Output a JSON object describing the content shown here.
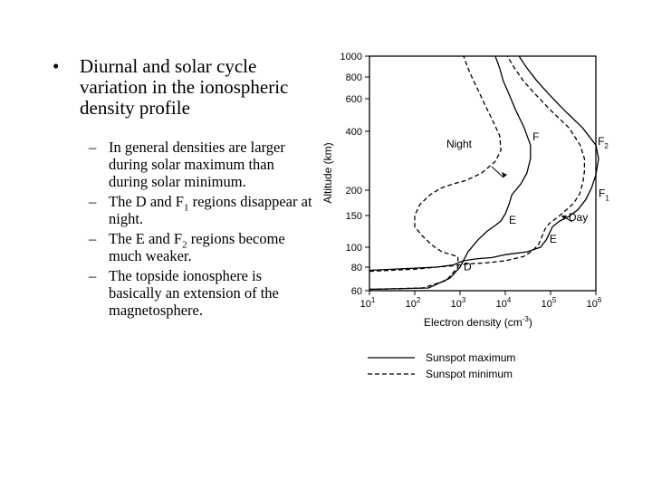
{
  "slide": {
    "bullet_dot": "•",
    "bullet_main": "Diurnal and solar cycle variation in the ionospheric density profile",
    "sub_dash": "–",
    "sub_bullets": [
      {
        "before": "In general densities are larger during solar maximum than during solar minimum.",
        "sub": "",
        "after": ""
      },
      {
        "before": "The D and F",
        "sub": "1",
        "after": " regions disappear at night."
      },
      {
        "before": "The E and F",
        "sub": "2",
        "after": " regions become much weaker."
      },
      {
        "before": "The topside ionosphere is basically an extension of the magnetosphere.",
        "sub": "",
        "after": ""
      }
    ]
  },
  "chart_data": {
    "type": "line",
    "ylabel": "Altitude (km)",
    "xlabel": "Electron density (cm",
    "xlabel_exp": "-3",
    "xlabel_close": ")",
    "x_ticks": [
      {
        "label": "10",
        "exp": "1",
        "value": 10
      },
      {
        "label": "10",
        "exp": "2",
        "value": 100
      },
      {
        "label": "10",
        "exp": "3",
        "value": 1000
      },
      {
        "label": "10",
        "exp": "4",
        "value": 10000
      },
      {
        "label": "10",
        "exp": "5",
        "value": 100000
      },
      {
        "label": "10",
        "exp": "6",
        "value": 1000000
      }
    ],
    "y_ticks": [
      {
        "label": "60",
        "value": 60
      },
      {
        "label": "80",
        "value": 80
      },
      {
        "label": "100",
        "value": 100
      },
      {
        "label": "150",
        "value": 150
      },
      {
        "label": "200",
        "value": 200
      },
      {
        "label": "400",
        "value": 400
      },
      {
        "label": "600",
        "value": 600
      },
      {
        "label": "800",
        "value": 800
      },
      {
        "label": "1000",
        "value": 1000
      }
    ],
    "legend": [
      {
        "label": "Sunspot maximum",
        "style": "solid"
      },
      {
        "label": "Sunspot minimum",
        "style": "dashed"
      }
    ],
    "annotations": [
      {
        "text": "Night",
        "x": 500,
        "y": 330
      },
      {
        "text": "F",
        "x": 40000,
        "y": 360
      },
      {
        "text": "F",
        "sub": "2",
        "x": 1100000,
        "y": 340
      },
      {
        "text": "F",
        "sub": "1",
        "x": 1150000,
        "y": 185
      },
      {
        "text": "Day",
        "x": 250000,
        "y": 140
      },
      {
        "text": "E",
        "x": 12000,
        "y": 135
      },
      {
        "text": "E",
        "x": 95000,
        "y": 106
      },
      {
        "text": "D",
        "x": 1200,
        "y": 77
      }
    ],
    "series": [
      {
        "line": "solid",
        "points": [
          [
            10,
            77
          ],
          [
            100,
            79
          ],
          [
            300,
            80
          ],
          [
            700,
            82
          ],
          [
            1200,
            86
          ],
          [
            2500,
            88
          ],
          [
            5000,
            89
          ],
          [
            10000,
            92
          ],
          [
            30000,
            95
          ],
          [
            60000,
            100
          ],
          [
            80000,
            110
          ],
          [
            95000,
            120
          ],
          [
            110000,
            130
          ],
          [
            160000,
            140
          ],
          [
            250000,
            148
          ],
          [
            400000,
            160
          ],
          [
            600000,
            180
          ],
          [
            800000,
            205
          ],
          [
            1000000,
            240
          ],
          [
            1150000,
            290
          ],
          [
            1000000,
            340
          ],
          [
            500000,
            420
          ],
          [
            200000,
            520
          ],
          [
            90000,
            640
          ],
          [
            50000,
            760
          ],
          [
            30000,
            880
          ],
          [
            20000,
            1000
          ]
        ]
      },
      {
        "line": "dashed",
        "points": [
          [
            10,
            76
          ],
          [
            100,
            78
          ],
          [
            300,
            80
          ],
          [
            600,
            81
          ],
          [
            1500,
            83
          ],
          [
            4000,
            84
          ],
          [
            10000,
            86
          ],
          [
            25000,
            90
          ],
          [
            40000,
            96
          ],
          [
            55000,
            104
          ],
          [
            65000,
            115
          ],
          [
            75000,
            126
          ],
          [
            95000,
            136
          ],
          [
            140000,
            146
          ],
          [
            210000,
            158
          ],
          [
            320000,
            172
          ],
          [
            440000,
            192
          ],
          [
            520000,
            220
          ],
          [
            560000,
            250
          ],
          [
            560000,
            290
          ],
          [
            450000,
            340
          ],
          [
            250000,
            420
          ],
          [
            100000,
            520
          ],
          [
            45000,
            640
          ],
          [
            25000,
            760
          ],
          [
            16000,
            880
          ],
          [
            11000,
            1000
          ]
        ]
      },
      {
        "line": "solid",
        "points": [
          [
            10,
            61
          ],
          [
            200,
            62
          ],
          [
            600,
            70
          ],
          [
            1000,
            80
          ],
          [
            1500,
            95
          ],
          [
            2500,
            110
          ],
          [
            4000,
            123
          ],
          [
            6000,
            132
          ],
          [
            8000,
            140
          ],
          [
            10000,
            153
          ],
          [
            12000,
            170
          ],
          [
            14000,
            190
          ],
          [
            22000,
            215
          ],
          [
            30000,
            245
          ],
          [
            36000,
            290
          ],
          [
            36000,
            340
          ],
          [
            26000,
            420
          ],
          [
            17000,
            520
          ],
          [
            12000,
            640
          ],
          [
            9000,
            760
          ],
          [
            7500,
            880
          ],
          [
            6000,
            1000
          ]
        ]
      },
      {
        "line": "dashed",
        "points": [
          [
            10,
            61
          ],
          [
            150,
            62
          ],
          [
            500,
            68
          ],
          [
            900,
            80
          ],
          [
            900,
            90
          ],
          [
            400,
            95
          ],
          [
            250,
            102
          ],
          [
            150,
            115
          ],
          [
            100,
            130
          ],
          [
            100,
            150
          ],
          [
            130,
            170
          ],
          [
            220,
            190
          ],
          [
            380,
            205
          ],
          [
            700,
            215
          ],
          [
            1400,
            225
          ],
          [
            3000,
            245
          ],
          [
            6000,
            280
          ],
          [
            8000,
            320
          ],
          [
            7500,
            380
          ],
          [
            5000,
            470
          ],
          [
            3500,
            560
          ],
          [
            2600,
            660
          ],
          [
            1900,
            780
          ],
          [
            1500,
            880
          ],
          [
            1200,
            1000
          ]
        ]
      }
    ]
  }
}
